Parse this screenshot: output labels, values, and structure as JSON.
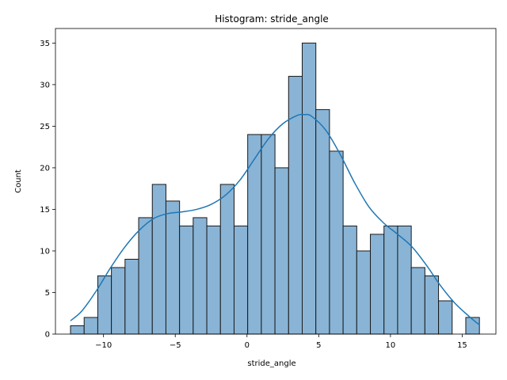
{
  "chart_data": {
    "type": "bar",
    "title": "Histogram: stride_angle",
    "xlabel": "stride_angle",
    "ylabel": "Count",
    "xlim": [
      -13.35,
      17.35
    ],
    "ylim": [
      0,
      36.75
    ],
    "xticks": [
      -10,
      -5,
      0,
      5,
      10,
      15
    ],
    "yticks": [
      0,
      5,
      10,
      15,
      20,
      25,
      30,
      35
    ],
    "grid": false,
    "legend": "none",
    "bin_edges": [
      -12.3,
      -11.35,
      -10.4,
      -9.45,
      -8.5,
      -7.55,
      -6.6,
      -5.65,
      -4.7,
      -3.75,
      -2.8,
      -1.85,
      -0.9,
      0.05,
      1.0,
      1.95,
      2.9,
      3.85,
      4.8,
      5.75,
      6.7,
      7.65,
      8.6,
      9.55,
      10.5,
      11.45,
      12.4,
      13.35,
      14.3,
      15.25,
      16.2
    ],
    "counts": [
      1,
      2,
      7,
      8,
      9,
      14,
      18,
      16,
      13,
      14,
      13,
      18,
      13,
      24,
      24,
      20,
      31,
      35,
      27,
      22,
      13,
      10,
      12,
      13,
      13,
      8,
      7,
      4,
      0,
      2
    ],
    "kde": {
      "x": [
        -12.3,
        -11.5,
        -10.5,
        -9.5,
        -8.5,
        -7.5,
        -6.5,
        -5.5,
        -4.5,
        -3.5,
        -2.5,
        -1.5,
        -0.5,
        0.5,
        1.5,
        2.5,
        3.5,
        4.0,
        4.5,
        5.5,
        6.5,
        7.5,
        8.5,
        9.5,
        10.5,
        11.5,
        12.5,
        13.5,
        14.5,
        15.5,
        16.2
      ],
      "y": [
        1.6,
        2.8,
        5.2,
        8.0,
        10.5,
        12.5,
        13.9,
        14.5,
        14.7,
        15.0,
        15.6,
        16.7,
        18.5,
        21.0,
        23.5,
        25.3,
        26.3,
        26.4,
        26.2,
        24.5,
        21.6,
        18.2,
        15.3,
        13.4,
        12.0,
        10.5,
        8.3,
        5.8,
        3.7,
        2.1,
        1.1
      ],
      "color": "#1f77b4"
    },
    "bar_color": "#89b4d6",
    "edge_color": "#1a1a1a"
  }
}
